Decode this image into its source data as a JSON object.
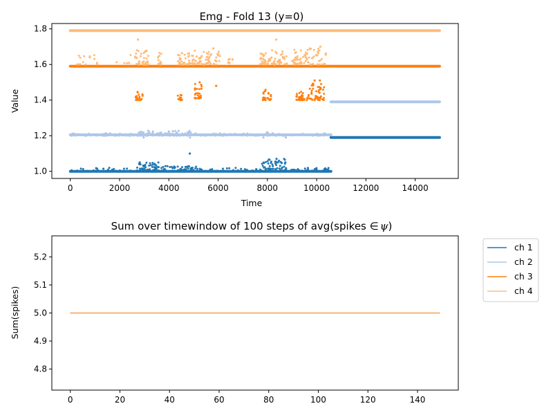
{
  "colors": {
    "ch1": "#1f77b4",
    "ch2": "#aec7e8",
    "ch3": "#ff7f0e",
    "ch4": "#ffbb78"
  },
  "chart_data": [
    {
      "type": "scatter",
      "title": "Emg - Fold 13 (y=0)",
      "xlabel": "Time",
      "ylabel": "Value",
      "xlim": [
        -750,
        15750
      ],
      "ylim": [
        0.96,
        1.83
      ],
      "xticks": [
        0,
        2000,
        4000,
        6000,
        8000,
        10000,
        12000,
        14000
      ],
      "xtick_labels": [
        "0",
        "2000",
        "4000",
        "6000",
        "8000",
        "10000",
        "12000",
        "14000"
      ],
      "yticks": [
        1.0,
        1.2,
        1.4,
        1.6,
        1.8
      ],
      "ytick_labels": [
        "1.0",
        "1.2",
        "1.4",
        "1.6",
        "1.8"
      ],
      "grid": false,
      "legend": "none",
      "series": [
        {
          "key": "ch1",
          "segments": [
            {
              "x_start": 0,
              "x_end": 10580,
              "y": 1.0
            },
            {
              "x_start": 10580,
              "x_end": 14990,
              "y": 1.19
            }
          ],
          "clusters": [
            {
              "x_start": 0,
              "x_end": 2500,
              "y_min": 1.0,
              "y_max": 1.02,
              "count": 40
            },
            {
              "x_start": 2700,
              "x_end": 3800,
              "y_min": 1.0,
              "y_max": 1.05,
              "count": 60
            },
            {
              "x_start": 3800,
              "x_end": 5200,
              "y_min": 1.0,
              "y_max": 1.03,
              "count": 60
            },
            {
              "x_start": 5200,
              "x_end": 7600,
              "y_min": 1.0,
              "y_max": 1.02,
              "count": 40
            },
            {
              "x_start": 7700,
              "x_end": 8800,
              "y_min": 1.0,
              "y_max": 1.07,
              "count": 80
            },
            {
              "x_start": 8800,
              "x_end": 10500,
              "y_min": 1.0,
              "y_max": 1.02,
              "count": 50
            }
          ],
          "points": [
            [
              4850,
              1.1
            ],
            [
              8370,
              1.07
            ],
            [
              2820,
              1.05
            ],
            [
              8730,
              1.05
            ]
          ]
        },
        {
          "key": "ch2",
          "segments": [
            {
              "x_start": 0,
              "x_end": 10580,
              "y": 1.205
            },
            {
              "x_start": 10580,
              "x_end": 14990,
              "y": 1.39
            }
          ],
          "clusters": [
            {
              "x_start": 0,
              "x_end": 2700,
              "y_min": 1.2,
              "y_max": 1.215,
              "count": 60
            },
            {
              "x_start": 2700,
              "x_end": 4900,
              "y_min": 1.2,
              "y_max": 1.23,
              "count": 90
            },
            {
              "x_start": 4900,
              "x_end": 10500,
              "y_min": 1.2,
              "y_max": 1.215,
              "count": 90
            }
          ],
          "points": [
            [
              2980,
              1.19
            ],
            [
              4860,
              1.19
            ],
            [
              7840,
              1.19
            ],
            [
              8750,
              1.19
            ],
            [
              7990,
              1.22
            ],
            [
              8350,
              1.2
            ]
          ]
        },
        {
          "key": "ch3",
          "segments": [
            {
              "x_start": 0,
              "x_end": 14990,
              "y": 1.59
            }
          ],
          "clusters": [
            {
              "x_start": 2650,
              "x_end": 2950,
              "y_min": 1.4,
              "y_max": 1.45,
              "count": 22
            },
            {
              "x_start": 4350,
              "x_end": 4550,
              "y_min": 1.4,
              "y_max": 1.43,
              "count": 14
            },
            {
              "x_start": 5050,
              "x_end": 5350,
              "y_min": 1.41,
              "y_max": 1.5,
              "count": 30
            },
            {
              "x_start": 7800,
              "x_end": 7950,
              "y_min": 1.4,
              "y_max": 1.46,
              "count": 14
            },
            {
              "x_start": 8000,
              "x_end": 8150,
              "y_min": 1.4,
              "y_max": 1.44,
              "count": 12
            },
            {
              "x_start": 9150,
              "x_end": 9500,
              "y_min": 1.4,
              "y_max": 1.45,
              "count": 35
            },
            {
              "x_start": 9600,
              "x_end": 10300,
              "y_min": 1.4,
              "y_max": 1.51,
              "count": 55
            }
          ],
          "points": [
            [
              5920,
              1.48
            ],
            [
              9920,
              1.51
            ],
            [
              10130,
              1.51
            ],
            [
              5250,
              1.5
            ]
          ]
        },
        {
          "key": "ch4",
          "segments": [
            {
              "x_start": 0,
              "x_end": 14990,
              "y": 1.79
            }
          ],
          "clusters": [
            {
              "x_start": 0,
              "x_end": 2500,
              "y_min": 1.6,
              "y_max": 1.67,
              "count": 20
            },
            {
              "x_start": 2600,
              "x_end": 3200,
              "y_min": 1.6,
              "y_max": 1.68,
              "count": 40
            },
            {
              "x_start": 3550,
              "x_end": 3700,
              "y_min": 1.6,
              "y_max": 1.67,
              "count": 14
            },
            {
              "x_start": 4350,
              "x_end": 5000,
              "y_min": 1.6,
              "y_max": 1.67,
              "count": 40
            },
            {
              "x_start": 5000,
              "x_end": 6100,
              "y_min": 1.6,
              "y_max": 1.68,
              "count": 60
            },
            {
              "x_start": 6400,
              "x_end": 6600,
              "y_min": 1.6,
              "y_max": 1.64,
              "count": 8
            },
            {
              "x_start": 7700,
              "x_end": 8800,
              "y_min": 1.6,
              "y_max": 1.68,
              "count": 70
            },
            {
              "x_start": 9000,
              "x_end": 10400,
              "y_min": 1.6,
              "y_max": 1.69,
              "count": 70
            }
          ],
          "points": [
            [
              2750,
              1.74
            ],
            [
              8360,
              1.74
            ],
            [
              10150,
              1.7
            ],
            [
              5810,
              1.69
            ]
          ]
        }
      ]
    },
    {
      "type": "line",
      "title": "Sum over timewindow of 100 steps of avg(spikes ∈ ψ)",
      "title_prefix": "Sum over timewindow of 100 steps of avg(spikes ",
      "title_symbol": "∈",
      "title_psi": "ψ",
      "title_suffix": ")",
      "xlabel": "",
      "ylabel": "Sum(spikes)",
      "xlim": [
        -7.45,
        156.45
      ],
      "ylim": [
        4.725,
        5.275
      ],
      "xticks": [
        0,
        20,
        40,
        60,
        80,
        100,
        120,
        140
      ],
      "xtick_labels": [
        "0",
        "20",
        "40",
        "60",
        "80",
        "100",
        "120",
        "140"
      ],
      "yticks": [
        4.8,
        4.9,
        5.0,
        5.1,
        5.2
      ],
      "ytick_labels": [
        "4.8",
        "4.9",
        "5.0",
        "5.1",
        "5.2"
      ],
      "grid": false,
      "legend": "outside-right",
      "series": [
        {
          "key": "ch1",
          "name": "ch 1",
          "x": [
            0,
            149
          ],
          "values": [
            5.0,
            5.0
          ]
        },
        {
          "key": "ch2",
          "name": "ch 2",
          "x": [
            0,
            149
          ],
          "values": [
            5.0,
            5.0
          ]
        },
        {
          "key": "ch3",
          "name": "ch 3",
          "x": [
            0,
            149
          ],
          "values": [
            5.0,
            5.0
          ]
        },
        {
          "key": "ch4",
          "name": "ch 4",
          "x": [
            0,
            149
          ],
          "values": [
            5.0,
            5.0
          ]
        }
      ]
    }
  ]
}
